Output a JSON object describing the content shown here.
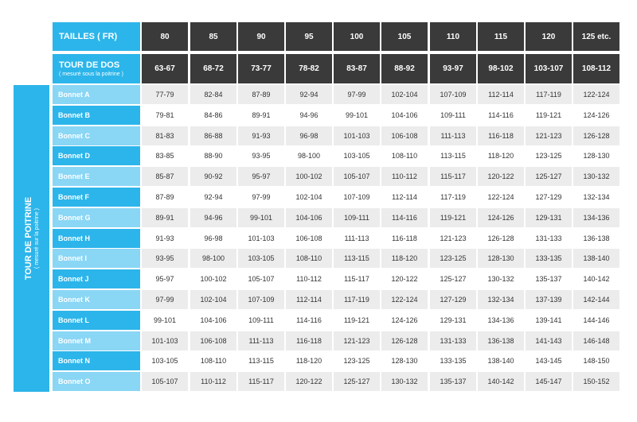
{
  "header": {
    "tailles_label": "TAILLES ( FR)",
    "dos_label": "TOUR DE DOS",
    "dos_sub": "( mesuré sous la poitrine )",
    "sizes": [
      "80",
      "85",
      "90",
      "95",
      "100",
      "105",
      "110",
      "115",
      "120",
      "125 etc."
    ],
    "dos": [
      "63-67",
      "68-72",
      "73-77",
      "78-82",
      "83-87",
      "88-92",
      "93-97",
      "98-102",
      "103-107",
      "108-112"
    ]
  },
  "side": {
    "title": "TOUR DE POITRINE",
    "sub": "( mesuré sur la poitrine )"
  },
  "rows": [
    {
      "label": "Bonnet A",
      "values": [
        "77-79",
        "82-84",
        "87-89",
        "92-94",
        "97-99",
        "102-104",
        "107-109",
        "112-114",
        "117-119",
        "122-124"
      ]
    },
    {
      "label": "Bonnet B",
      "values": [
        "79-81",
        "84-86",
        "89-91",
        "94-96",
        "99-101",
        "104-106",
        "109-111",
        "114-116",
        "119-121",
        "124-126"
      ]
    },
    {
      "label": "Bonnet C",
      "values": [
        "81-83",
        "86-88",
        "91-93",
        "96-98",
        "101-103",
        "106-108",
        "111-113",
        "116-118",
        "121-123",
        "126-128"
      ]
    },
    {
      "label": "Bonnet D",
      "values": [
        "83-85",
        "88-90",
        "93-95",
        "98-100",
        "103-105",
        "108-110",
        "113-115",
        "118-120",
        "123-125",
        "128-130"
      ]
    },
    {
      "label": "Bonnet E",
      "values": [
        "85-87",
        "90-92",
        "95-97",
        "100-102",
        "105-107",
        "110-112",
        "115-117",
        "120-122",
        "125-127",
        "130-132"
      ]
    },
    {
      "label": "Bonnet F",
      "values": [
        "87-89",
        "92-94",
        "97-99",
        "102-104",
        "107-109",
        "112-114",
        "117-119",
        "122-124",
        "127-129",
        "132-134"
      ]
    },
    {
      "label": "Bonnet G",
      "values": [
        "89-91",
        "94-96",
        "99-101",
        "104-106",
        "109-111",
        "114-116",
        "119-121",
        "124-126",
        "129-131",
        "134-136"
      ]
    },
    {
      "label": "Bonnet H",
      "values": [
        "91-93",
        "96-98",
        "101-103",
        "106-108",
        "111-113",
        "116-118",
        "121-123",
        "126-128",
        "131-133",
        "136-138"
      ]
    },
    {
      "label": "Bonnet I",
      "values": [
        "93-95",
        "98-100",
        "103-105",
        "108-110",
        "113-115",
        "118-120",
        "123-125",
        "128-130",
        "133-135",
        "138-140"
      ]
    },
    {
      "label": "Bonnet J",
      "values": [
        "95-97",
        "100-102",
        "105-107",
        "110-112",
        "115-117",
        "120-122",
        "125-127",
        "130-132",
        "135-137",
        "140-142"
      ]
    },
    {
      "label": "Bonnet K",
      "values": [
        "97-99",
        "102-104",
        "107-109",
        "112-114",
        "117-119",
        "122-124",
        "127-129",
        "132-134",
        "137-139",
        "142-144"
      ]
    },
    {
      "label": "Bonnet L",
      "values": [
        "99-101",
        "104-106",
        "109-111",
        "114-116",
        "119-121",
        "124-126",
        "129-131",
        "134-136",
        "139-141",
        "144-146"
      ]
    },
    {
      "label": "Bonnet M",
      "values": [
        "101-103",
        "106-108",
        "111-113",
        "116-118",
        "121-123",
        "126-128",
        "131-133",
        "136-138",
        "141-143",
        "146-148"
      ]
    },
    {
      "label": "Bonnet N",
      "values": [
        "103-105",
        "108-110",
        "113-115",
        "118-120",
        "123-125",
        "128-130",
        "133-135",
        "138-140",
        "143-145",
        "148-150"
      ]
    },
    {
      "label": "Bonnet O",
      "values": [
        "105-107",
        "110-112",
        "115-117",
        "120-122",
        "125-127",
        "130-132",
        "135-137",
        "140-142",
        "145-147",
        "150-152"
      ]
    }
  ],
  "colors": {
    "accent": "#2cb5ea",
    "accent_light": "#8ad6f5",
    "header_dark": "#3a3a3a",
    "row_shade": "#ececec"
  }
}
